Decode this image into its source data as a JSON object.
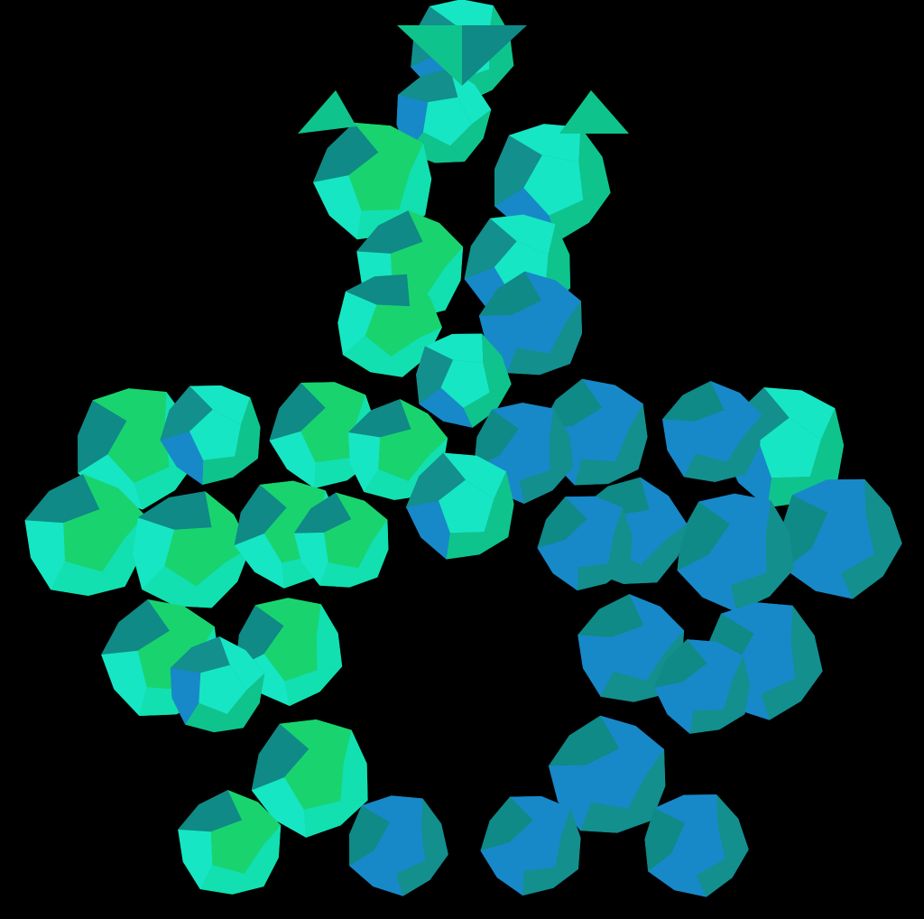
{
  "palette": {
    "background": "#000000",
    "teal_dark": "#0f8a86",
    "teal_mid": "#138f8d",
    "blue": "#1789c8",
    "blue_bright": "#1f7fff",
    "green": "#0fc48c",
    "green_bright": "#12e0b0",
    "mint": "#17e6c4",
    "spring": "#19d46e"
  },
  "subject": "polyhedral-dodecahedron-cluster"
}
